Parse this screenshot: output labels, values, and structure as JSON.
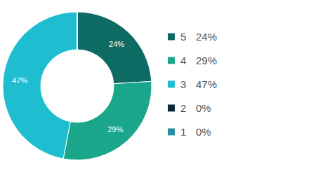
{
  "chart_data": {
    "type": "pie",
    "categories": [
      "5",
      "4",
      "3",
      "2",
      "1"
    ],
    "values": [
      24,
      29,
      47,
      0,
      0
    ],
    "value_labels": [
      "24%",
      "29%",
      "47%",
      "0%",
      "0%"
    ],
    "colors": [
      "#0e6b63",
      "#1aa68b",
      "#1fbdd0",
      "#0b2b39",
      "#2a8ea3"
    ],
    "data_labels": true,
    "legend": "right"
  }
}
